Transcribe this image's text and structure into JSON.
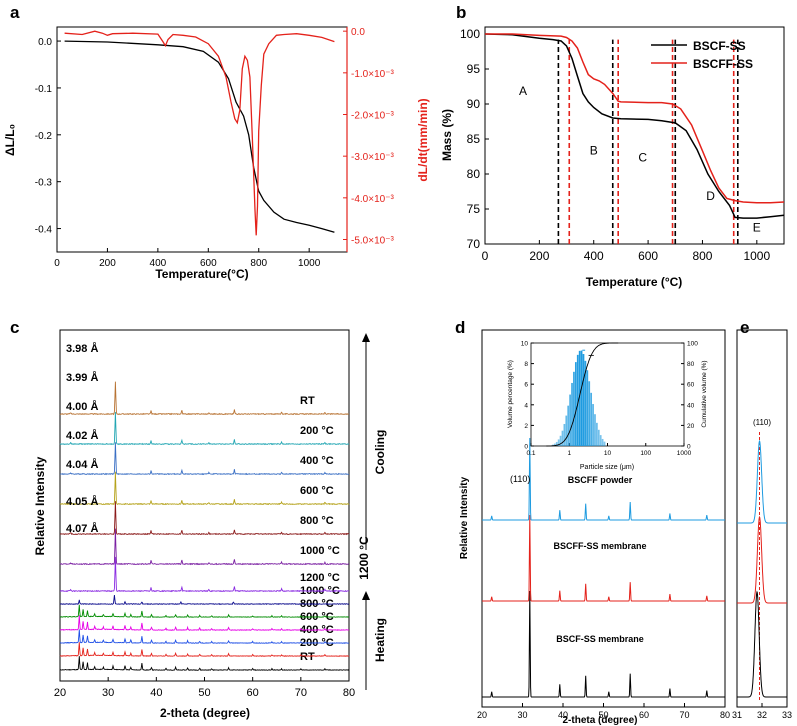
{
  "panels": {
    "a": {
      "letter": "a",
      "xlabel": "Temperature(°C)",
      "ylabel_left": "ΔL/L₀",
      "ylabel_right": "dL/dt(mm/min)"
    },
    "b": {
      "letter": "b",
      "xlabel": "Temperature (°C)",
      "ylabel": "Mass (%)",
      "region_labels": [
        "A",
        "B",
        "C",
        "D",
        "E"
      ]
    },
    "c": {
      "letter": "c",
      "xlabel": "2-theta (degree)",
      "ylabel": "Relative Intensity",
      "lattice_labels": [
        "3.98 Å",
        "3.99 Å",
        "4.00 Å",
        "4.02 Å",
        "4.04 Å",
        "4.05 Å",
        "4.07 Å"
      ],
      "cooling_label": "Cooling",
      "heating_label": "Heating",
      "hold_label": "1200 °C"
    },
    "d": {
      "letter": "d",
      "xlabel": "2-theta (degree)",
      "ylabel": "Relative Intensity",
      "peak_label": "(110)",
      "pattern_labels": [
        "BSCFF powder",
        "BSCFF-SS membrane",
        "BSCF-SS membrane"
      ],
      "inset": {
        "xlabel": "Particle size (μm)",
        "ylabel_left": "Volume percentage (%)",
        "ylabel_right": "Cumulative volume (%)"
      }
    },
    "e": {
      "letter": "e",
      "peak_label": "(110)"
    }
  },
  "chart_data": [
    {
      "panel": "a",
      "type": "line",
      "xlabel": "Temperature(°C)",
      "xlim": [
        0,
        1150
      ],
      "xticks": [
        0,
        200,
        400,
        600,
        800,
        1000
      ],
      "ylabel": "ΔL/L₀",
      "ylim": [
        -0.45,
        0.03
      ],
      "yticks": [
        0.0,
        -0.1,
        -0.2,
        -0.3,
        -0.4
      ],
      "y2label": "dL/dt(mm/min)",
      "y2lim": [
        -5.3,
        0.1
      ],
      "y2ticks": [
        0.0,
        -1.0,
        -2.0,
        -3.0,
        -4.0,
        -5.0
      ],
      "y2tick_labels": [
        "0.0",
        "-1.0×10⁻³",
        "-2.0×10⁻³",
        "-3.0×10⁻³",
        "-4.0×10⁻³",
        "-5.0×10⁻³"
      ],
      "colors": {
        "left": "#000000",
        "right": "#e4221b"
      },
      "series": [
        {
          "axis": "left",
          "color": "#000000",
          "x": [
            30,
            200,
            400,
            500,
            580,
            640,
            680,
            710,
            740,
            760,
            780,
            800,
            820,
            860,
            900,
            950,
            1000,
            1050,
            1100
          ],
          "y": [
            0.0,
            -0.002,
            -0.008,
            -0.012,
            -0.022,
            -0.045,
            -0.08,
            -0.13,
            -0.16,
            -0.2,
            -0.27,
            -0.32,
            -0.34,
            -0.365,
            -0.38,
            -0.387,
            -0.393,
            -0.4,
            -0.408
          ]
        },
        {
          "axis": "right",
          "color": "#e4221b",
          "x": [
            30,
            100,
            150,
            180,
            200,
            220,
            300,
            400,
            420,
            430,
            440,
            460,
            500,
            550,
            600,
            640,
            670,
            690,
            705,
            715,
            725,
            735,
            745,
            755,
            765,
            775,
            785,
            790,
            795,
            800,
            810,
            820,
            840,
            870,
            900,
            950,
            1000,
            1050,
            1100
          ],
          "y": [
            -0.05,
            -0.08,
            0.0,
            -0.05,
            -0.1,
            -0.06,
            -0.05,
            -0.07,
            -0.25,
            -0.35,
            -0.2,
            -0.08,
            -0.1,
            -0.14,
            -0.3,
            -0.6,
            -1.1,
            -1.7,
            -2.1,
            -2.2,
            -1.9,
            -0.9,
            -0.6,
            -0.7,
            -1.1,
            -2.6,
            -4.3,
            -4.9,
            -4.2,
            -2.4,
            -1.3,
            -0.55,
            -0.3,
            -0.1,
            -0.08,
            -0.06,
            -0.1,
            -0.15,
            -0.25
          ]
        }
      ]
    },
    {
      "panel": "b",
      "type": "line",
      "xlabel": "Temperature (°C)",
      "xlim": [
        0,
        1100
      ],
      "xticks": [
        0,
        200,
        400,
        600,
        800,
        1000
      ],
      "ylabel": "Mass (%)",
      "ylim": [
        70,
        101
      ],
      "yticks": [
        70,
        75,
        80,
        85,
        90,
        95,
        100
      ],
      "legend": "top-right",
      "series": [
        {
          "name": "BSCF-SS",
          "color": "#000000",
          "x": [
            0,
            100,
            200,
            250,
            280,
            300,
            320,
            340,
            360,
            380,
            400,
            430,
            470,
            500,
            600,
            650,
            700,
            740,
            780,
            820,
            860,
            900,
            920,
            950,
            1000,
            1050,
            1100
          ],
          "y": [
            100,
            99.9,
            99.4,
            99.2,
            99.0,
            98.3,
            96.5,
            94.0,
            91.5,
            90.3,
            89.5,
            88.6,
            88.0,
            87.9,
            87.8,
            87.6,
            87.3,
            86.2,
            83.5,
            80.0,
            77.5,
            75.5,
            73.8,
            73.7,
            73.7,
            73.9,
            74.1
          ]
        },
        {
          "name": "BSCFF-SS",
          "color": "#e4221b",
          "x": [
            0,
            100,
            200,
            280,
            300,
            320,
            340,
            360,
            380,
            400,
            420,
            440,
            470,
            490,
            500,
            600,
            650,
            690,
            720,
            760,
            800,
            830,
            860,
            890,
            920,
            950,
            1000,
            1050,
            1100
          ],
          "y": [
            100,
            100,
            99.8,
            99.7,
            99.5,
            99.0,
            98.0,
            96.0,
            94.2,
            93.6,
            93.3,
            92.8,
            91.5,
            90.4,
            90.3,
            90.2,
            90.2,
            90.0,
            89.3,
            87.0,
            83.3,
            80.5,
            78.0,
            76.5,
            76.2,
            76.0,
            75.9,
            75.9,
            76.0
          ]
        }
      ],
      "vlines": [
        {
          "x": 270,
          "color": "#000000",
          "style": "dashed"
        },
        {
          "x": 310,
          "color": "#e4221b",
          "style": "dashed"
        },
        {
          "x": 470,
          "color": "#000000",
          "style": "dashed"
        },
        {
          "x": 490,
          "color": "#e4221b",
          "style": "dashed"
        },
        {
          "x": 690,
          "color": "#e4221b",
          "style": "dashed"
        },
        {
          "x": 700,
          "color": "#000000",
          "style": "dashed"
        },
        {
          "x": 915,
          "color": "#e4221b",
          "style": "dashed"
        },
        {
          "x": 930,
          "color": "#000000",
          "style": "dashed"
        }
      ],
      "region_labels": [
        {
          "text": "A",
          "x": 140,
          "y": 92
        },
        {
          "text": "B",
          "x": 400,
          "y": 83.5
        },
        {
          "text": "C",
          "x": 580,
          "y": 82.5
        },
        {
          "text": "D",
          "x": 830,
          "y": 77
        },
        {
          "text": "E",
          "x": 1000,
          "y": 72.5
        }
      ]
    },
    {
      "panel": "c",
      "type": "line",
      "xlabel": "2-theta (degree)",
      "xlim": [
        20,
        80
      ],
      "xticks": [
        20,
        30,
        40,
        50,
        60,
        70,
        80
      ],
      "ylabel": "Relative Intensity",
      "series": [
        {
          "name": "RT",
          "color": "#000000",
          "phase": "heating",
          "profile": "pre"
        },
        {
          "name": "200 °C",
          "color": "#e4221b",
          "phase": "heating",
          "profile": "pre"
        },
        {
          "name": "400 °C",
          "color": "#1f4fe6",
          "phase": "heating",
          "profile": "pre"
        },
        {
          "name": "600 °C",
          "color": "#e600e6",
          "phase": "heating",
          "profile": "pre"
        },
        {
          "name": "800 °C",
          "color": "#008c00",
          "phase": "heating",
          "profile": "pre"
        },
        {
          "name": "1000 °C",
          "color": "#0a0a8c",
          "phase": "heating",
          "profile": "mix"
        },
        {
          "name": "1200 °C",
          "color": "#8a2be2",
          "phase": "hold",
          "lattice": "4.07 Å",
          "profile": "perov"
        },
        {
          "name": "1000 °C",
          "color": "#7a1fa2",
          "phase": "cooling",
          "lattice": "4.05 Å",
          "profile": "perov"
        },
        {
          "name": "800 °C",
          "color": "#8b1a1a",
          "phase": "cooling",
          "lattice": "4.04 Å",
          "profile": "perov"
        },
        {
          "name": "600 °C",
          "color": "#b5a21a",
          "phase": "cooling",
          "lattice": "4.02 Å",
          "profile": "perov"
        },
        {
          "name": "400 °C",
          "color": "#3a6fc4",
          "phase": "cooling",
          "lattice": "4.00 Å",
          "profile": "perov"
        },
        {
          "name": "200 °C",
          "color": "#22a6b3",
          "phase": "cooling",
          "lattice": "3.99 Å",
          "profile": "perov"
        },
        {
          "name": "RT",
          "color": "#b87333",
          "phase": "cooling",
          "lattice": "3.98 Å",
          "profile": "perov"
        }
      ]
    },
    {
      "panel": "d",
      "type": "line",
      "xlabel": "2-theta (degree)",
      "xlim": [
        20,
        80
      ],
      "xticks": [
        20,
        30,
        40,
        50,
        60,
        70,
        80
      ],
      "ylabel": "Relative Intensity",
      "series": [
        {
          "name": "BSCF-SS membrane",
          "color": "#000000"
        },
        {
          "name": "BSCFF-SS membrane",
          "color": "#e4221b"
        },
        {
          "name": "BSCFF powder",
          "color": "#1e9be0"
        }
      ],
      "peaks": [
        {
          "x": 22.4,
          "h": 0.05
        },
        {
          "x": 31.8,
          "h": 1.0
        },
        {
          "x": 39.2,
          "h": 0.12
        },
        {
          "x": 45.6,
          "h": 0.2
        },
        {
          "x": 51.3,
          "h": 0.05
        },
        {
          "x": 56.6,
          "h": 0.22
        },
        {
          "x": 66.4,
          "h": 0.08
        },
        {
          "x": 75.5,
          "h": 0.06
        }
      ]
    },
    {
      "panel": "d-inset",
      "type": "bar",
      "xlabel": "Particle size (μm)",
      "xscale": "log",
      "xlim": [
        0.1,
        1000
      ],
      "xticks": [
        0.1,
        1,
        10,
        100,
        1000
      ],
      "ylabel": "Volume percentage (%)",
      "ylim": [
        0,
        10
      ],
      "yticks": [
        0,
        2,
        4,
        6,
        8,
        10
      ],
      "y2label": "Cumulative volume (%)",
      "y2lim": [
        0,
        100
      ],
      "y2ticks": [
        0,
        20,
        40,
        60,
        80,
        100
      ],
      "bar_color": "#1e9be0",
      "median": 1.9,
      "peak_value": 9.3
    },
    {
      "panel": "e",
      "type": "line",
      "xlim": [
        31,
        33
      ],
      "xticks": [
        31,
        32,
        33
      ],
      "reference_line": {
        "x": 31.9,
        "color": "#e4221b",
        "style": "dashed"
      },
      "series": [
        {
          "name": "BSCF-SS membrane",
          "color": "#000000",
          "center": 31.8
        },
        {
          "name": "BSCFF-SS membrane",
          "color": "#e4221b",
          "center": 31.9
        },
        {
          "name": "BSCFF powder",
          "color": "#1e9be0",
          "center": 31.9
        }
      ]
    }
  ]
}
